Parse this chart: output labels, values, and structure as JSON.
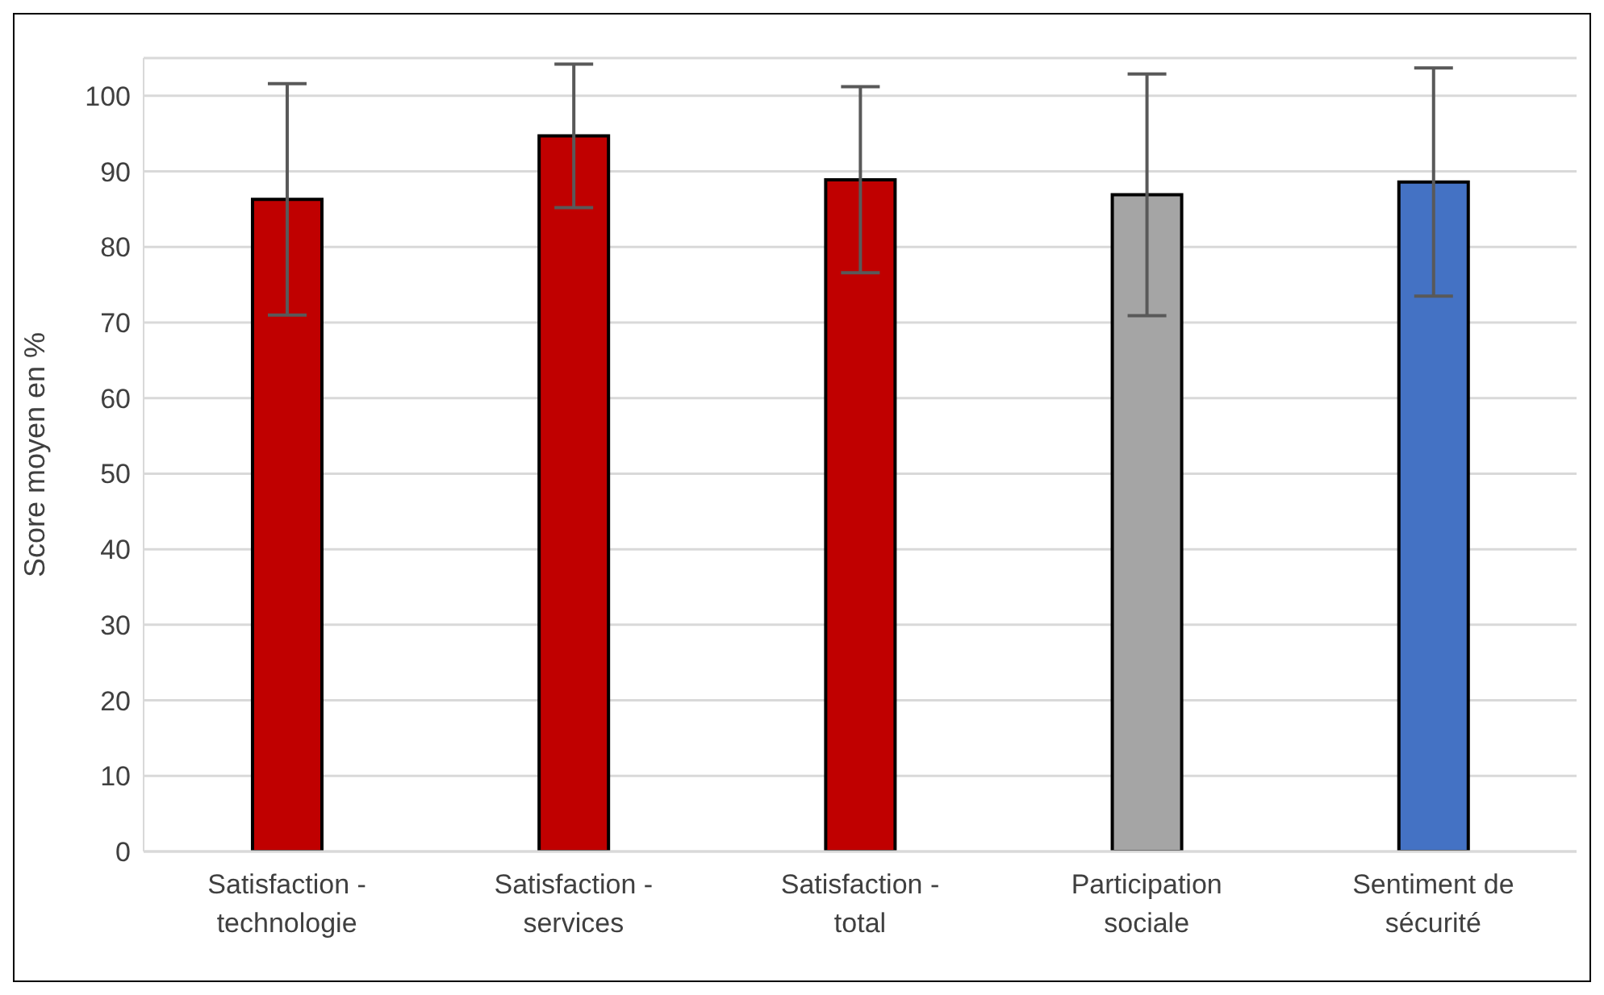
{
  "chart_data": {
    "type": "bar",
    "ylabel": "Score moyen en %",
    "categories": [
      "Satisfaction - technologie",
      "Satisfaction - services",
      "Satisfaction - total",
      "Participation sociale",
      "Sentiment de sécurité"
    ],
    "values": [
      86.3,
      94.7,
      88.9,
      86.9,
      88.6
    ],
    "colors": [
      "#c00000",
      "#c00000",
      "#c00000",
      "#a5a5a5",
      "#4472c4"
    ],
    "errors": [
      15.3,
      9.5,
      12.3,
      16,
      15.1
    ],
    "ylim": [
      0,
      105
    ],
    "yticks": [
      0,
      10,
      20,
      30,
      40,
      50,
      60,
      70,
      80,
      90,
      100
    ],
    "grid": "y"
  }
}
